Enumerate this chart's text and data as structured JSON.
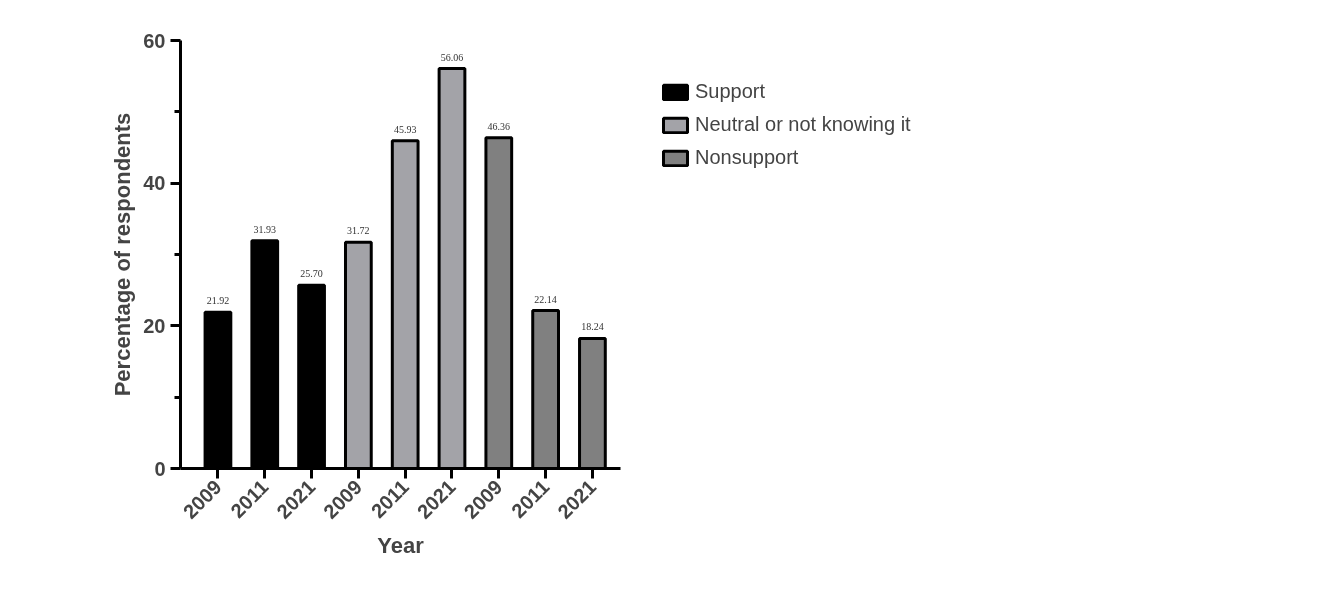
{
  "chart_data": {
    "type": "bar",
    "xlabel": "Year",
    "ylabel": "Percentage of respondents",
    "categories": [
      "2009",
      "2011",
      "2021",
      "2009",
      "2011",
      "2021",
      "2009",
      "2011",
      "2021"
    ],
    "series": [
      {
        "name": "Support",
        "color": "#000000",
        "values": [
          21.92,
          31.93,
          25.7,
          null,
          null,
          null,
          null,
          null,
          null
        ],
        "value_labels": [
          "21.92",
          "31.93",
          "25.70",
          null,
          null,
          null,
          null,
          null,
          null
        ]
      },
      {
        "name": "Neutral or not knowing it",
        "color": "#a3a3a8",
        "values": [
          null,
          null,
          null,
          31.72,
          45.93,
          56.06,
          null,
          null,
          null
        ],
        "value_labels": [
          null,
          null,
          null,
          "31.72",
          "45.93",
          "56.06",
          null,
          null,
          null
        ]
      },
      {
        "name": "Nonsupport",
        "color": "#808080",
        "values": [
          null,
          null,
          null,
          null,
          null,
          null,
          46.36,
          22.14,
          18.24
        ],
        "value_labels": [
          null,
          null,
          null,
          null,
          null,
          null,
          "46.36",
          "22.14",
          "18.24"
        ]
      }
    ],
    "ylim": [
      0,
      60
    ],
    "yticks": [
      0,
      {
        "value": 10,
        "label": null
      },
      20,
      {
        "value": 30,
        "label": null
      },
      40,
      {
        "value": 50,
        "label": null
      },
      60
    ],
    "grid": false,
    "legend": "top right"
  }
}
